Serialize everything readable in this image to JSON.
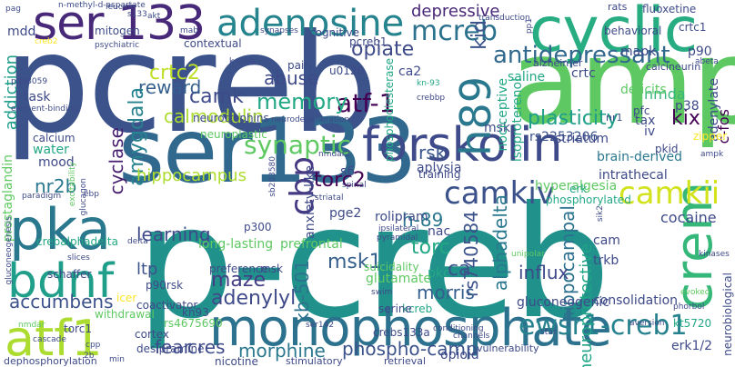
{
  "colors": {
    "background": "#ffffff",
    "palette": [
      "#440154",
      "#3b528b",
      "#2c728e",
      "#21918c",
      "#28ae80",
      "#5ec962",
      "#addc30",
      "#fde725"
    ]
  },
  "words": [
    {
      "text": "pcreb",
      "color": "#3b528b"
    },
    {
      "text": "p-creb",
      "color": "#21918c"
    },
    {
      "text": "amp",
      "color": "#5ec962"
    },
    {
      "text": "ser133",
      "color": "#31688e"
    },
    {
      "text": "ser 133",
      "color": "#482878"
    },
    {
      "text": "monophosphate",
      "color": "#2c728e"
    },
    {
      "text": "cyclic",
      "color": "#27ad81"
    },
    {
      "text": "forskolin",
      "color": "#3e4a89"
    },
    {
      "text": "pka",
      "color": "#2a788e"
    },
    {
      "text": "bdnf",
      "color": "#1f9e89"
    },
    {
      "text": "adenosine",
      "color": "#25848e"
    },
    {
      "text": "atf1",
      "color": "#addc30"
    },
    {
      "text": "crem",
      "color": "#35b779"
    },
    {
      "text": "camkiv",
      "color": "#3b528b"
    },
    {
      "text": "camkii",
      "color": "#d2e21b"
    },
    {
      "text": "h89",
      "color": "#2a788e"
    },
    {
      "text": "cbp",
      "color": "#443983"
    },
    {
      "text": "ewsr1-creb1",
      "color": "#26828e"
    },
    {
      "text": "mcreb",
      "color": "#2c728e"
    },
    {
      "text": "antidepressant",
      "color": "#31688e"
    },
    {
      "text": "depressive",
      "color": "#482878"
    },
    {
      "text": "kid",
      "color": "#3b528b"
    },
    {
      "text": "opiate",
      "color": "#3e4a89"
    },
    {
      "text": "atf-1",
      "color": "#440154"
    },
    {
      "text": "plasticity",
      "color": "#1f9e89"
    },
    {
      "text": "memory",
      "color": "#22a884"
    },
    {
      "text": "synaptic",
      "color": "#5ec962"
    },
    {
      "text": "camk",
      "color": "#3e4a89"
    },
    {
      "text": "crtc2",
      "color": "#bddf26"
    },
    {
      "text": "reward",
      "color": "#355f8d"
    },
    {
      "text": "abuse",
      "color": "#3e4a89"
    },
    {
      "text": "amygdala",
      "color": "#26828e"
    },
    {
      "text": "cyclase",
      "color": "#481f70"
    },
    {
      "text": "addiction",
      "color": "#1f9e89"
    },
    {
      "text": "calmodulin",
      "color": "#addc30"
    },
    {
      "text": "hippocampus",
      "color": "#addc30"
    },
    {
      "text": "nr2b",
      "color": "#2a788e"
    },
    {
      "text": "torc2",
      "color": "#440154"
    },
    {
      "text": "h-89",
      "color": "#2a788e"
    },
    {
      "text": "rsk",
      "color": "#39568c"
    },
    {
      "text": "msk1",
      "color": "#355f8d"
    },
    {
      "text": "alphadelta",
      "color": "#2a788e"
    },
    {
      "text": "rs740584",
      "color": "#3b528b"
    },
    {
      "text": "hippocampal",
      "color": "#2c728e"
    },
    {
      "text": "learning",
      "color": "#3e4a89"
    },
    {
      "text": "ltp",
      "color": "#3b528b"
    },
    {
      "text": "maze",
      "color": "#433e85"
    },
    {
      "text": "adenylyl",
      "color": "#3e4a89"
    },
    {
      "text": "accumbens",
      "color": "#3b528b"
    },
    {
      "text": "kb-501",
      "color": "#2c728e"
    },
    {
      "text": "morris",
      "color": "#355f8d"
    },
    {
      "text": "cres",
      "color": "#3e4a89"
    },
    {
      "text": "fear",
      "color": "#3e4a89"
    },
    {
      "text": "morphine",
      "color": "#2a788e"
    },
    {
      "text": "phospho-camp",
      "color": "#3b528b"
    },
    {
      "text": "cocaine",
      "color": "#3e4a89"
    },
    {
      "text": "torc",
      "color": "#22a884"
    },
    {
      "text": "ca",
      "color": "#3b528b"
    },
    {
      "text": "kix",
      "color": "#440154"
    },
    {
      "text": "nmda",
      "color": "#35b779"
    },
    {
      "text": "neuroprotective",
      "color": "#20a486"
    },
    {
      "text": "brain-derived",
      "color": "#2a788e"
    },
    {
      "text": "rs2253206",
      "color": "#3b528b"
    },
    {
      "text": "striatum",
      "color": "#3e4a89"
    },
    {
      "text": "c-fos",
      "color": "#440154"
    },
    {
      "text": "rolipram",
      "color": "#3e4a89"
    },
    {
      "text": "pge2",
      "color": "#3e4a89"
    },
    {
      "text": "s6",
      "color": "#3e4a89"
    },
    {
      "text": "aplysia",
      "color": "#3e4a89"
    },
    {
      "text": "msks",
      "color": "#3e4a89"
    },
    {
      "text": "prefrontal",
      "color": "#5ec962"
    },
    {
      "text": "anxiety-like",
      "color": "#3e4a89"
    },
    {
      "text": "saline",
      "color": "#22a884"
    },
    {
      "text": "isoproterenol",
      "color": "#22a884"
    },
    {
      "text": "nociceptive",
      "color": "#22a884"
    },
    {
      "text": "ca2",
      "color": "#3e4a89"
    },
    {
      "text": "crtc",
      "color": "#3e4a89"
    },
    {
      "text": "mapk",
      "color": "#3e4a89"
    },
    {
      "text": "fluoxetine",
      "color": "#3e4a89"
    },
    {
      "text": "behavioral",
      "color": "#3e4a89"
    },
    {
      "text": "crtc1",
      "color": "#3e4a89"
    },
    {
      "text": "p90",
      "color": "#3e4a89"
    },
    {
      "text": "p38",
      "color": "#3e4a89"
    },
    {
      "text": "adenylate",
      "color": "#3e4a89"
    },
    {
      "text": "deficits",
      "color": "#5ec962"
    },
    {
      "text": "tax",
      "color": "#3e4a89"
    },
    {
      "text": "iv",
      "color": "#3e4a89"
    },
    {
      "text": "intrathecal",
      "color": "#3e4a89"
    },
    {
      "text": "hyperalgesia",
      "color": "#5ec962"
    },
    {
      "text": "erk",
      "color": "#22a884"
    },
    {
      "text": "influx",
      "color": "#3e4a89"
    },
    {
      "text": "consolidation",
      "color": "#3e4a89"
    },
    {
      "text": "cam",
      "color": "#3e4a89"
    },
    {
      "text": "trkb",
      "color": "#3e4a89"
    },
    {
      "text": "gluconeogenic",
      "color": "#3e4a89"
    },
    {
      "text": "erk1/2",
      "color": "#3e4a89"
    },
    {
      "text": "neurobiological",
      "color": "#3e4a89"
    },
    {
      "text": "kt5720",
      "color": "#22a884"
    },
    {
      "text": "opioid",
      "color": "#3e4a89"
    },
    {
      "text": "pkc",
      "color": "#22a884"
    },
    {
      "text": "nac",
      "color": "#3e4a89"
    },
    {
      "text": "glutamate",
      "color": "#5ec962"
    },
    {
      "text": "suicidality",
      "color": "#5ec962"
    },
    {
      "text": "long-lasting",
      "color": "#5ec962"
    },
    {
      "text": "p300",
      "color": "#3e4a89"
    },
    {
      "text": "crebalphadelta",
      "color": "#22a884"
    },
    {
      "text": "prostaglandin",
      "color": "#5ec962"
    },
    {
      "text": "mood",
      "color": "#3e4a89"
    },
    {
      "text": "water",
      "color": "#22a884"
    },
    {
      "text": "calcium",
      "color": "#3e4a89"
    },
    {
      "text": "task",
      "color": "#3e4a89"
    },
    {
      "text": "neurotrophins",
      "color": "#3e4a89"
    },
    {
      "text": "neuroplastic",
      "color": "#5ec962"
    },
    {
      "text": "mdd",
      "color": "#3e4a89"
    },
    {
      "text": "mitogen",
      "color": "#3e4a89"
    },
    {
      "text": "contextual",
      "color": "#3e4a89"
    },
    {
      "text": "cognitive",
      "color": "#3e4a89"
    },
    {
      "text": "u0126",
      "color": "#3e4a89"
    },
    {
      "text": "pain",
      "color": "#3e4a89"
    },
    {
      "text": "pcreb1",
      "color": "#3e4a89"
    },
    {
      "text": "training",
      "color": "#3e4a89"
    },
    {
      "text": "schaffer",
      "color": "#3e4a89"
    },
    {
      "text": "p90rsk",
      "color": "#3e4a89"
    },
    {
      "text": "msk",
      "color": "#3e4a89"
    },
    {
      "text": "preference",
      "color": "#3e4a89"
    },
    {
      "text": "kn93",
      "color": "#3e4a89"
    },
    {
      "text": "coactivator",
      "color": "#3e4a89"
    },
    {
      "text": "rs4675690",
      "color": "#5ec962"
    },
    {
      "text": "crebs133a",
      "color": "#3e4a89"
    },
    {
      "text": "torc1",
      "color": "#3e4a89"
    },
    {
      "text": "withdrawal",
      "color": "#5ec962"
    },
    {
      "text": "cortex",
      "color": "#3e4a89"
    },
    {
      "text": "desipramine",
      "color": "#3e4a89"
    },
    {
      "text": "nicotine",
      "color": "#3e4a89"
    },
    {
      "text": "dephosphorylation",
      "color": "#3e4a89"
    },
    {
      "text": "stimulatory",
      "color": "#3e4a89"
    },
    {
      "text": "retrieval",
      "color": "#3e4a89"
    },
    {
      "text": "vulnerability",
      "color": "#3e4a89"
    },
    {
      "text": "icer",
      "color": "#fde725"
    },
    {
      "text": "kcreb",
      "color": "#22a884"
    },
    {
      "text": "serine",
      "color": "#3e4a89"
    },
    {
      "text": "phosphorylated",
      "color": "#22a884"
    },
    {
      "text": "pkid",
      "color": "#3e4a89"
    },
    {
      "text": "zipper",
      "color": "#fde725"
    },
    {
      "text": "pfc",
      "color": "#3e4a89"
    },
    {
      "text": "nr1",
      "color": "#3e4a89"
    },
    {
      "text": "calcineurin",
      "color": "#3e4a89"
    },
    {
      "text": "alzheimer",
      "color": "#3e4a89"
    },
    {
      "text": "rats",
      "color": "#3e4a89"
    },
    {
      "text": "transduction",
      "color": "#3e4a89"
    },
    {
      "text": "leucine",
      "color": "#3e4a89"
    },
    {
      "text": "akt",
      "color": "#3e4a89"
    },
    {
      "text": "synapses",
      "color": "#3e4a89"
    },
    {
      "text": "psychiatric",
      "color": "#3e4a89"
    },
    {
      "text": "crebbp",
      "color": "#3e4a89"
    },
    {
      "text": "pp1",
      "color": "#3e4a89"
    },
    {
      "text": "phosphodiesterase",
      "color": "#22a884"
    },
    {
      "text": "neurodegeneration",
      "color": "#3e4a89"
    },
    {
      "text": "kn-93",
      "color": "#22a884"
    },
    {
      "text": "pd98059",
      "color": "#3e4a89"
    },
    {
      "text": "excitability",
      "color": "#5ec962"
    },
    {
      "text": "glucagon",
      "color": "#3e4a89"
    },
    {
      "text": "paradigm",
      "color": "#3e4a89"
    },
    {
      "text": "gluconeogenesis",
      "color": "#3e4a89"
    },
    {
      "text": "sb203580",
      "color": "#3e4a89"
    },
    {
      "text": "slices",
      "color": "#3e4a89"
    },
    {
      "text": "ser142",
      "color": "#3e4a89"
    },
    {
      "text": "nmdar",
      "color": "#5ec962"
    },
    {
      "text": "cascade",
      "color": "#3e4a89"
    },
    {
      "text": "cpp",
      "color": "#3e4a89"
    },
    {
      "text": "2b",
      "color": "#3e4a89"
    },
    {
      "text": "min",
      "color": "#3e4a89"
    },
    {
      "text": "channels",
      "color": "#3e4a89"
    },
    {
      "text": "conditioning",
      "color": "#3e4a89"
    },
    {
      "text": "star",
      "color": "#3e4a89"
    },
    {
      "text": "aversion",
      "color": "#3e4a89"
    },
    {
      "text": "phorbol",
      "color": "#3e4a89"
    },
    {
      "text": "evoked",
      "color": "#5ec962"
    },
    {
      "text": "kinases",
      "color": "#3e4a89"
    },
    {
      "text": "ipsilateral",
      "color": "#3e4a89"
    },
    {
      "text": "pyramidal",
      "color": "#3e4a89"
    },
    {
      "text": "swim",
      "color": "#3e4a89"
    },
    {
      "text": "unipolar",
      "color": "#5ec962"
    },
    {
      "text": "delta",
      "color": "#3e4a89"
    },
    {
      "text": "pag",
      "color": "#3e4a89"
    },
    {
      "text": "creb2",
      "color": "#fde725"
    },
    {
      "text": "s133",
      "color": "#3e4a89"
    },
    {
      "text": "ampk",
      "color": "#3e4a89"
    },
    {
      "text": "sik2",
      "color": "#3e4a89"
    },
    {
      "text": "ebp",
      "color": "#3e4a89"
    },
    {
      "text": "nmdar2",
      "color": "#3e4a89"
    },
    {
      "text": "striatal",
      "color": "#3e4a89"
    },
    {
      "text": "spinal",
      "color": "#3e4a89"
    },
    {
      "text": "element-binding",
      "color": "#3e4a89"
    },
    {
      "text": "n-methyl-d-aspartate",
      "color": "#3e4a89"
    },
    {
      "text": "abeta",
      "color": "#3e4a89"
    },
    {
      "text": "k-creb",
      "color": "#3e4a89"
    },
    {
      "text": "mab",
      "color": "#3e4a89"
    }
  ]
}
